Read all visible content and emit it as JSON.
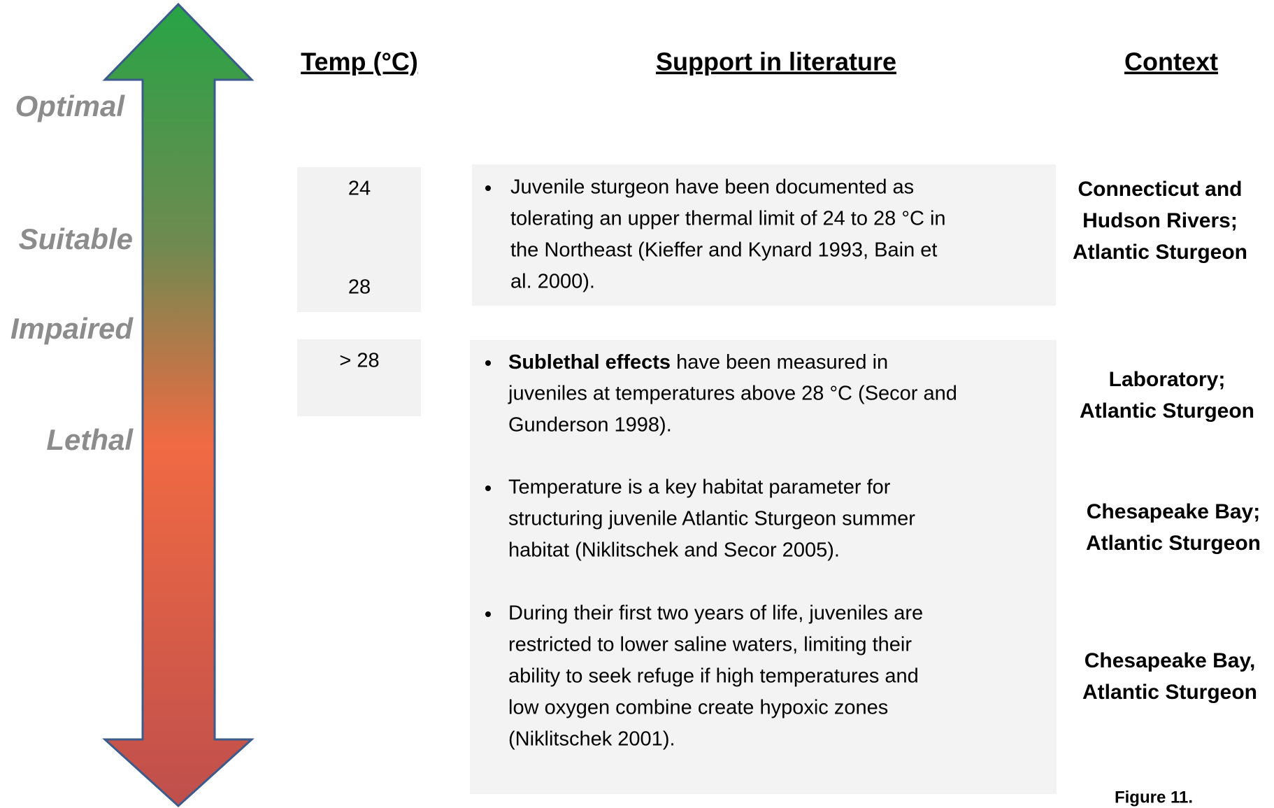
{
  "levels": [
    "Optimal",
    "Suitable",
    "Impaired",
    "Lethal"
  ],
  "headers": {
    "temp": "Temp (°C)",
    "support": "Support in literature",
    "context": "Context"
  },
  "rows": [
    {
      "temps": [
        "24",
        "28"
      ],
      "bullets": [
        {
          "lines": [
            "Juvenile sturgeon have been documented as",
            "tolerating an upper thermal limit of 24 to 28 °C in",
            "the Northeast (Kieffer and Kynard 1993, Bain et",
            "al. 2000)."
          ]
        }
      ],
      "contexts": [
        [
          "Connecticut and",
          "Hudson Rivers;",
          "Atlantic Sturgeon"
        ]
      ]
    },
    {
      "temps": [
        "> 28"
      ],
      "bullets": [
        {
          "lead": "Sublethal effects",
          "lines": [
            "have been measured in",
            "juveniles at temperatures above 28 °C (Secor and",
            "Gunderson 1998)."
          ]
        },
        {
          "lines": [
            "Temperature is a key habitat parameter for",
            "structuring juvenile Atlantic Sturgeon summer",
            "habitat (Niklitschek and Secor 2005)."
          ]
        },
        {
          "lines": [
            "During their first two years of life, juveniles are",
            "restricted to lower saline waters, limiting their",
            "ability to seek refuge if high temperatures and",
            "low oxygen combine create hypoxic zones",
            "(Niklitschek 2001)."
          ]
        }
      ],
      "contexts": [
        [
          "Laboratory;",
          "Atlantic Sturgeon"
        ],
        [
          "Chesapeake Bay;",
          "Atlantic Sturgeon"
        ],
        [
          "Chesapeake Bay,",
          "Atlantic Sturgeon"
        ]
      ]
    }
  ],
  "figure_label": "Figure 11."
}
